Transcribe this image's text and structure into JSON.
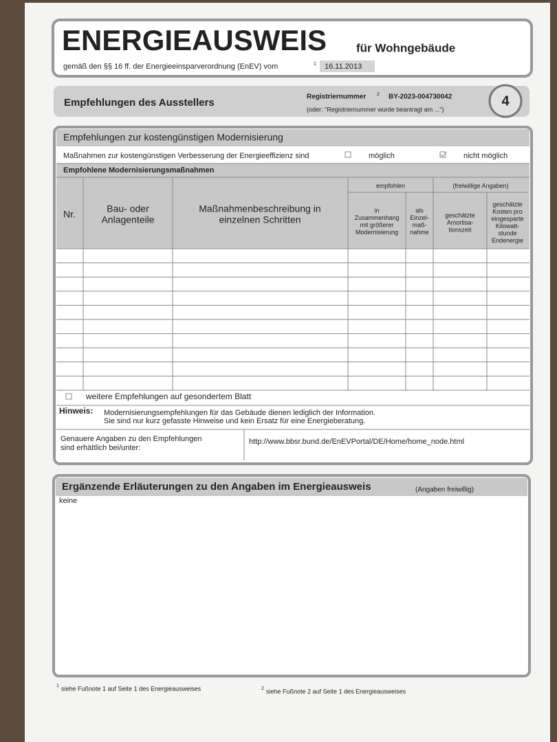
{
  "header": {
    "title": "ENERGIEAUSWEIS",
    "subtitle": "für Wohngebäude",
    "legal": "gemäß den §§ 16 ff. der Energieeinsparverordnung (EnEV) vom",
    "legal_footnote": "1",
    "date": "16.11.2013"
  },
  "section_bar": {
    "title": "Empfehlungen des Ausstellers",
    "reg_label": "Registriernummer",
    "reg_footnote": "2",
    "reg_number": "BY-2023-004730042",
    "reg_note": "(oder: \"Registriernummer wurde beantragt am ...\")",
    "page": "4"
  },
  "recommendations": {
    "title": "Empfehlungen zur kostengünstigen Modernisierung",
    "measures_text": "Maßnahmen zur kostengünstigen Verbesserung der Energieeffizienz sind",
    "option_possible": "möglich",
    "option_not_possible": "nicht möglich",
    "possible": false,
    "table_title": "Empfohlene Modernisierungsmaßnahmen",
    "columns": {
      "nr": "Nr.",
      "part": [
        "Bau- oder",
        "Anlagenteile"
      ],
      "description": [
        "Maßnahmenbeschreibung in",
        "einzelnen Schritten"
      ],
      "recommended": "empfohlen",
      "combined": [
        "in",
        "Zusammenhang",
        "mit größerer",
        "Modernisierung"
      ],
      "single": [
        "als",
        "Einzel-",
        "maß-",
        "nahme"
      ],
      "optional": "(freiwillige Angaben)",
      "amortisation": [
        "geschätzte",
        "Amortisa-",
        "tionszeit"
      ],
      "cost": [
        "geschätzte",
        "Kosten pro",
        "eingesparte",
        "Kilowatt-",
        "stunde",
        "Endenergie"
      ]
    },
    "more": "weitere Empfehlungen auf gesondertem Blatt",
    "note_label": "Hinweis:",
    "note_lines": [
      "Modernisierungsempfehlungen für das Gebäude dienen lediglich der Information.",
      "Sie sind nur kurz gefasste Hinweise und kein Ersatz für eine Energieberatung."
    ],
    "details_label": [
      "Genauere Angaben zu den Empfehlungen",
      "sind erhältlich bei/unter:"
    ],
    "details_url": "http://www.bbsr.bund.de/EnEVPortal/DE/Home/home_node.html"
  },
  "explanations": {
    "title": "Ergänzende Erläuterungen zu den Angaben im Energieausweis",
    "qualifier": "(Angaben freiwillig)",
    "text": "keine"
  },
  "footnotes": [
    {
      "number": "1",
      "text": "siehe Fußnote 1 auf Seite 1 des Energieausweises"
    },
    {
      "number": "2",
      "text": "siehe Fußnote 2 auf Seite 1 des Energieausweises"
    }
  ]
}
